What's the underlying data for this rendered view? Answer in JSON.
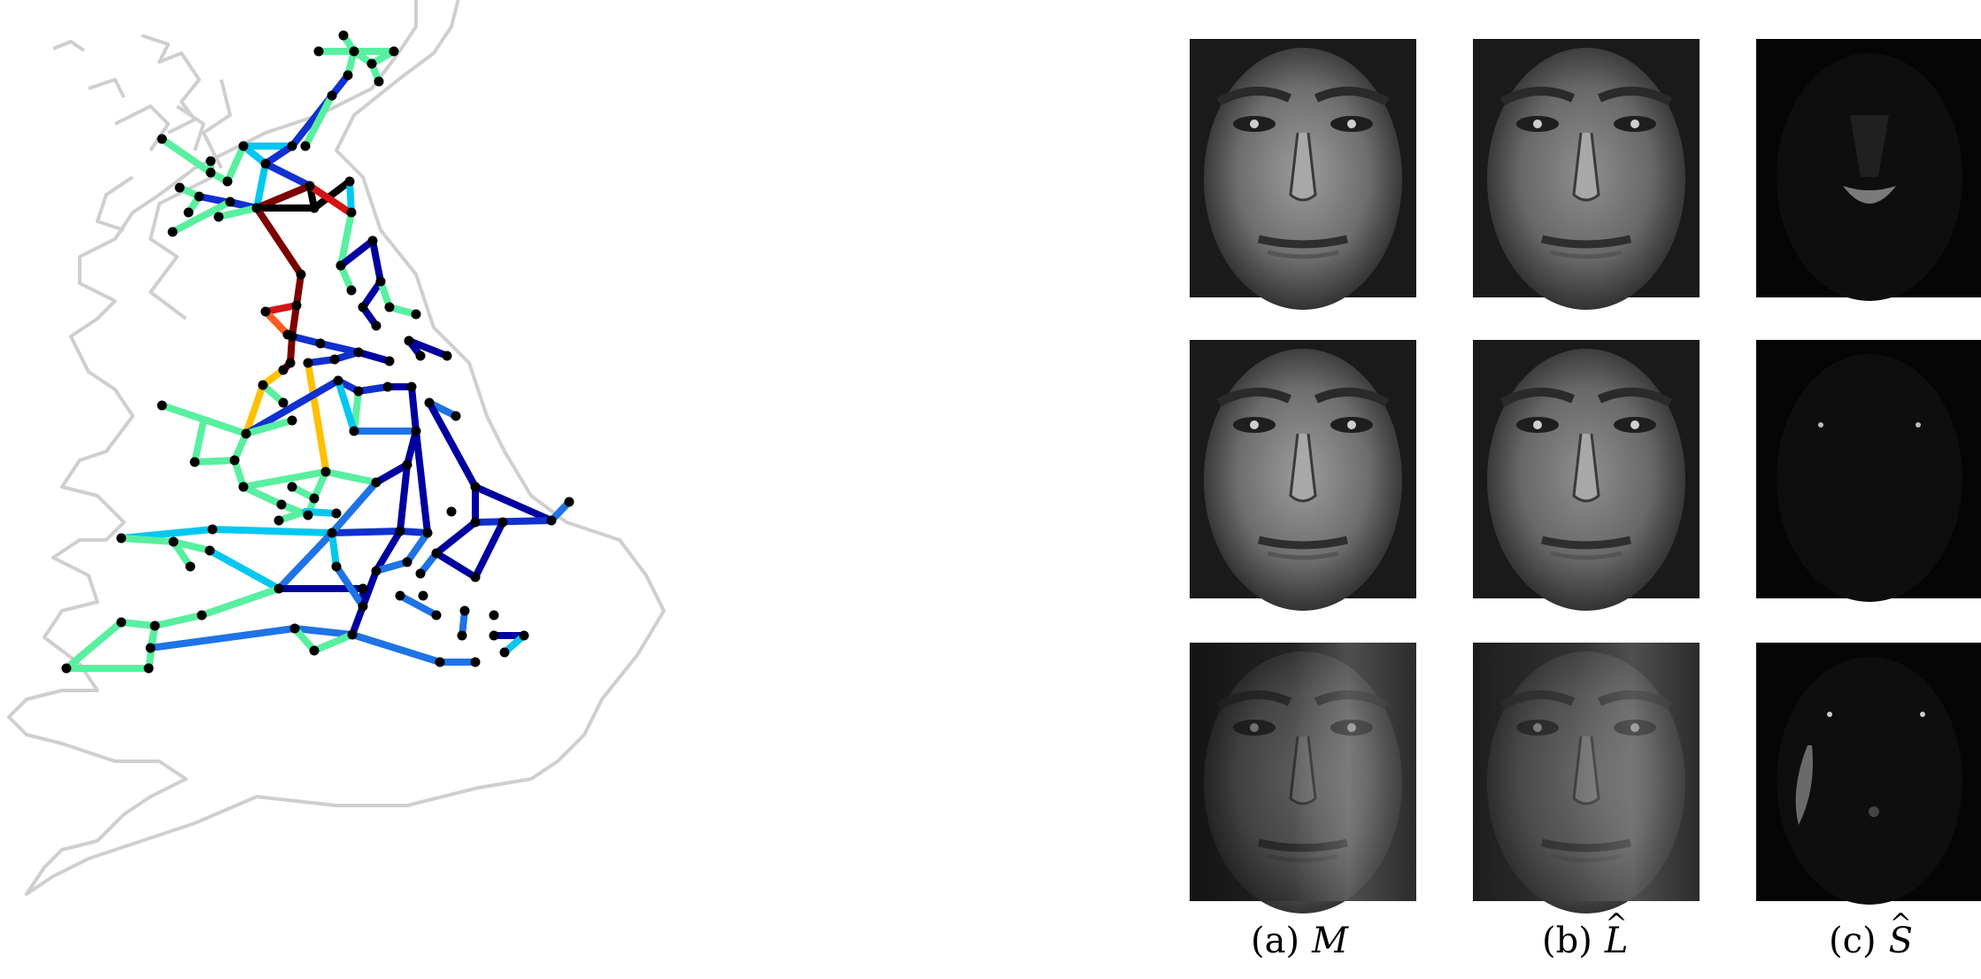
{
  "figure": {
    "captions": [
      {
        "label": "(a)",
        "symbol": "M",
        "hat": ""
      },
      {
        "label": "(b)",
        "symbol": "L",
        "hat": "^"
      },
      {
        "label": "(c)",
        "symbol": "S",
        "hat": "^"
      }
    ]
  },
  "colors": {
    "coastline": "#cfcfcf",
    "node": "#000000",
    "edge_palette": [
      "#0000a0",
      "#1030d0",
      "#1e73e6",
      "#00c8f0",
      "#58f0a0",
      "#ffc000",
      "#ff5a1e",
      "#d21414",
      "#7d0000",
      "#000000"
    ]
  }
}
